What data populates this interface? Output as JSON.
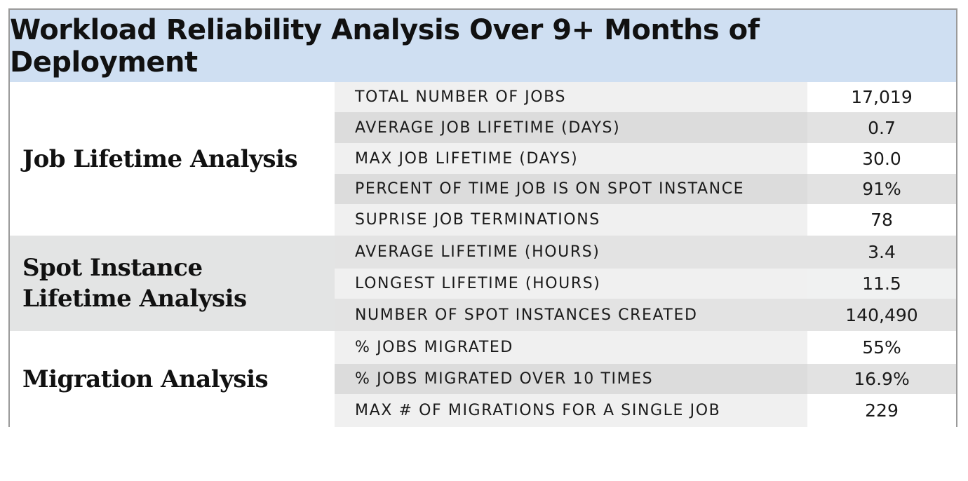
{
  "title": "Workload Reliability Analysis Over 9+ Months of Deployment",
  "sections": [
    {
      "label": "Job Lifetime Analysis",
      "rows": [
        {
          "metric": "TOTAL NUMBER OF JOBS",
          "value": "17,019"
        },
        {
          "metric": "AVERAGE JOB LIFETIME (DAYS)",
          "value": "0.7"
        },
        {
          "metric": "MAX JOB LIFETIME (DAYS)",
          "value": "30.0"
        },
        {
          "metric": "PERCENT OF TIME JOB IS ON SPOT INSTANCE",
          "value": "91%"
        },
        {
          "metric": "SUPRISE JOB TERMINATIONS",
          "value": "78"
        }
      ]
    },
    {
      "label_line1": "Spot Instance",
      "label_line2": "Lifetime Analysis",
      "rows": [
        {
          "metric": "AVERAGE LIFETIME (HOURS)",
          "value": "3.4"
        },
        {
          "metric": "LONGEST LIFETIME (HOURS)",
          "value": "11.5"
        },
        {
          "metric": "NUMBER OF SPOT INSTANCES CREATED",
          "value": "140,490"
        }
      ]
    },
    {
      "label": "Migration Analysis",
      "rows": [
        {
          "metric": "% JOBS MIGRATED",
          "value": "55%"
        },
        {
          "metric": "% JOBS MIGRATED OVER 10 TIMES",
          "value": "16.9%"
        },
        {
          "metric": "MAX # OF MIGRATIONS FOR A SINGLE JOB",
          "value": "229"
        }
      ]
    }
  ],
  "colors": {
    "title_background": "#cfdff2",
    "border": "#9a9a9a",
    "section_grey": "#e3e4e4"
  }
}
